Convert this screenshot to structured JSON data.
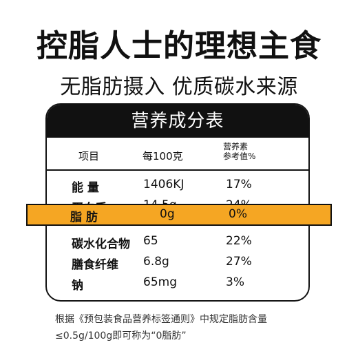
{
  "title": "控脂人士的理想主食",
  "subtitle": "无脂肪摄入  优质碳水来源",
  "table": {
    "header": "营养成分表",
    "columns": {
      "item": "项目",
      "per": "每100克",
      "nrv_line1": "营养素",
      "nrv_line2": "参考值%"
    },
    "rows": [
      {
        "name": "能  量",
        "per": "1406KJ",
        "nrv": "17%"
      },
      {
        "name": "蛋白质",
        "per": "14.5g",
        "nrv": "24%"
      },
      {
        "name": "脂  肪",
        "per": "0g",
        "nrv": "0%"
      },
      {
        "name": "碳水化合物",
        "per": "65",
        "nrv": "22%"
      },
      {
        "name": "膳食纤维",
        "per": "6.8g",
        "nrv": "27%"
      },
      {
        "name": "钠",
        "per": "65mg",
        "nrv": "3%"
      }
    ]
  },
  "footnote": {
    "line1": "根据《预包装食品营养标签通则》中规定脂肪含量",
    "line2": "≤0.5g/100g即可称为“0脂肪”"
  },
  "colors": {
    "highlight": "#f5a623",
    "header_bg": "#111111"
  }
}
